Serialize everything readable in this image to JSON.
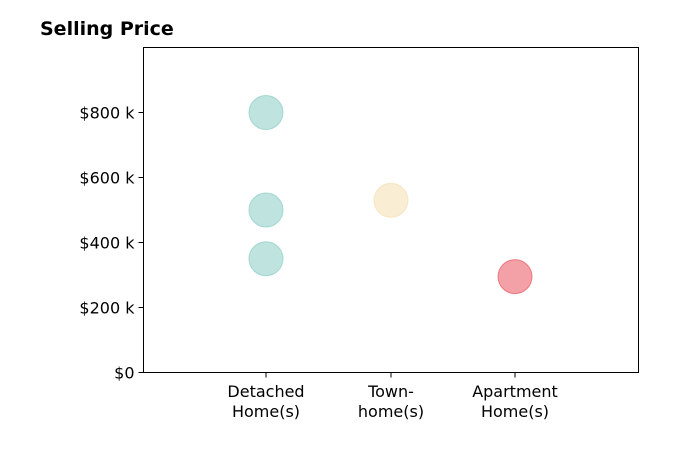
{
  "chart_data": {
    "type": "scatter",
    "title": "Selling Price",
    "xlabel": "",
    "ylabel": "",
    "categories": [
      [
        "Detached",
        "Home(s)"
      ],
      [
        "Town-",
        "home(s)"
      ],
      [
        "Apartment",
        "Home(s)"
      ]
    ],
    "ylim": [
      0,
      1000000
    ],
    "y_ticks": [
      {
        "value": 0,
        "label": "$0"
      },
      {
        "value": 200000,
        "label": "$200 k"
      },
      {
        "value": 400000,
        "label": "$400 k"
      },
      {
        "value": 600000,
        "label": "$600 k"
      },
      {
        "value": 800000,
        "label": "$800 k"
      }
    ],
    "points": [
      {
        "category": 0,
        "y": 800000,
        "color": "#7fc8c0"
      },
      {
        "category": 0,
        "y": 500000,
        "color": "#7fc8c0"
      },
      {
        "category": 0,
        "y": 350000,
        "color": "#7fc8c0"
      },
      {
        "category": 1,
        "y": 530000,
        "color": "#f4dca8"
      },
      {
        "category": 2,
        "y": 295000,
        "color": "#e8434f"
      }
    ],
    "grid": false,
    "legend": "none"
  }
}
